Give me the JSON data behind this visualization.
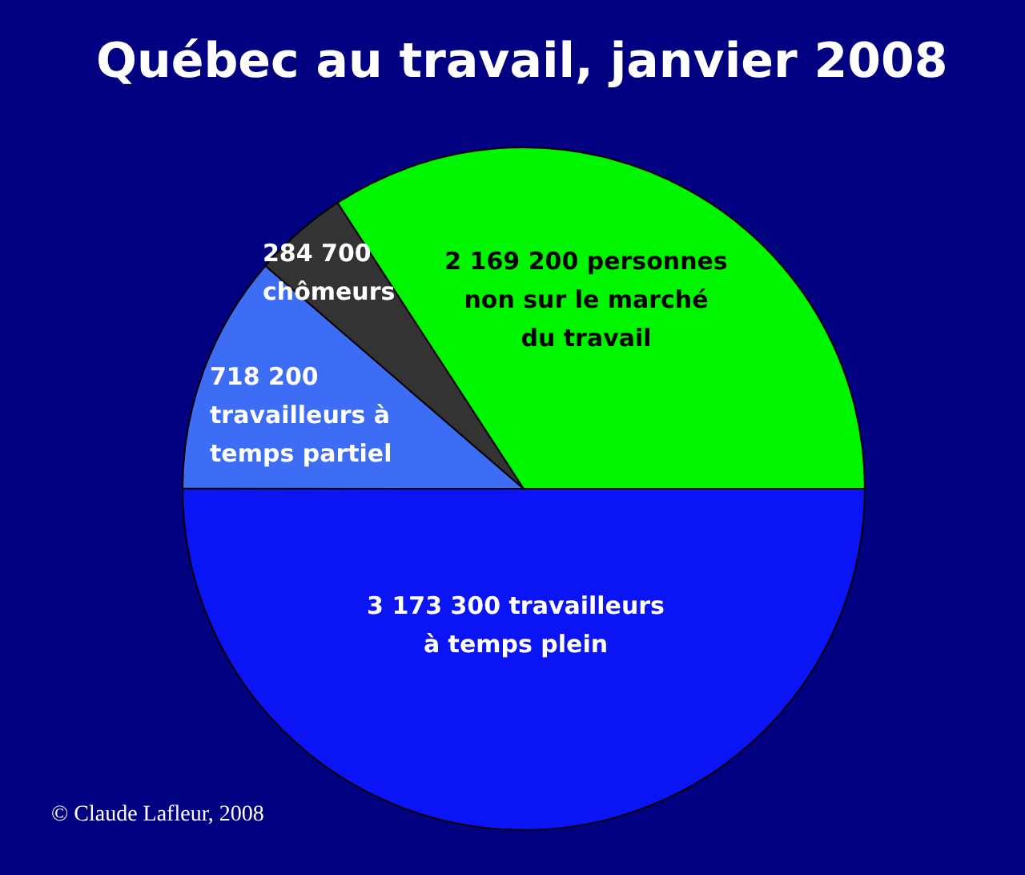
{
  "chart_data": {
    "type": "pie",
    "title": "Québec au travail, janvier 2008",
    "categories": [
      "travailleurs à temps plein",
      "travailleurs à temps partiel",
      "chômeurs",
      "personnes non sur le marché du travail"
    ],
    "values": [
      3173300,
      718200,
      284700,
      2169200
    ],
    "value_labels": [
      "3 173 300",
      "718 200",
      "284 700",
      "2 169 200"
    ],
    "colors": [
      "#0a14f5",
      "#3d6cf5",
      "#333333",
      "#00f500"
    ],
    "annotations": [
      "© Claude Lafleur, 2008"
    ]
  }
}
